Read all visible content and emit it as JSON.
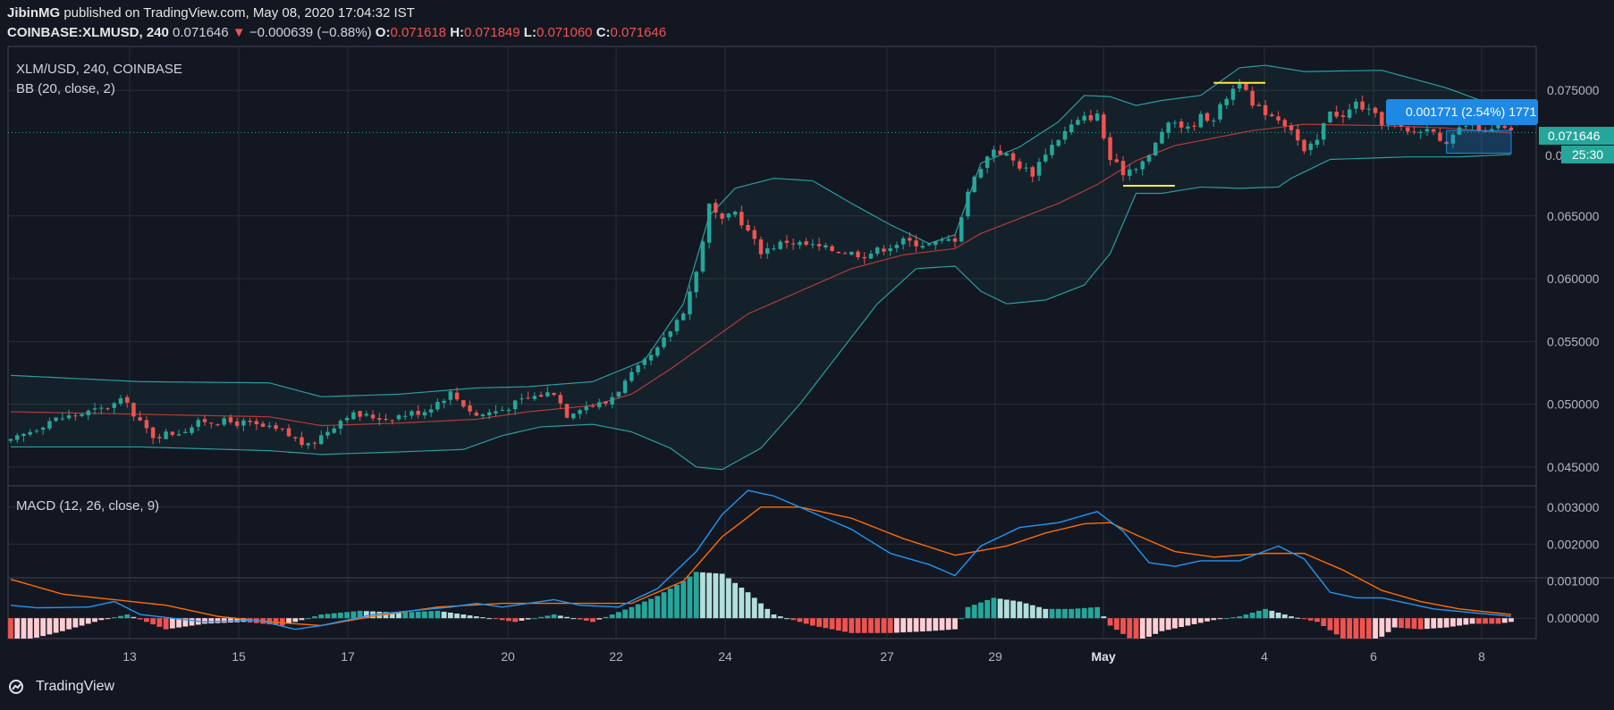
{
  "header": {
    "author": "JibinMG",
    "published_text": "published on TradingView.com, May 08, 2020 17:04:32 IST",
    "symbol": "COINBASE:XLMUSD, 240",
    "last": "0.071646",
    "change_arrow": "▼",
    "change": "−0.000639 (−0.88%)",
    "o_label": "O:",
    "o": "0.071618",
    "h_label": "H:",
    "h": "0.071849",
    "l_label": "L:",
    "l": "0.071060",
    "c_label": "C:",
    "c": "0.071646"
  },
  "pane": {
    "title": "XLM/USD, 240, COINBASE",
    "indicator": "BB (20, close, 2)",
    "macd_title": "MACD (12, 26, close, 9)"
  },
  "price_labels": {
    "last": "0.071646",
    "countdown": "25:30",
    "partial": "0.0",
    "measure": "0.001771 (2.54%) 1771"
  },
  "footer": {
    "brand": "TradingView"
  },
  "colors": {
    "background": "#131722",
    "up": "#26a69a",
    "down": "#ef5350",
    "bb_band": "#2a9d9d",
    "bb_basis": "#b33a3a",
    "macd": "#2196f3",
    "signal": "#ff6d00",
    "hist_up_strong": "#26a69a",
    "hist_up_weak": "#b2dfdb",
    "hist_down_strong": "#ef5350",
    "hist_down_weak": "#ffcdd2",
    "highlight": "#ffeb3b",
    "measure": "#1e88e5"
  },
  "chart_data": [
    {
      "type": "candlestick",
      "title": "XLM/USD, 240, COINBASE",
      "ylim": [
        0.0435,
        0.0785
      ],
      "y_ticks": [
        "0.075000",
        "0.065000",
        "0.060000",
        "0.055000",
        "0.050000",
        "0.045000"
      ],
      "x_ticks": [
        "13",
        "15",
        "17",
        "20",
        "22",
        "24",
        "27",
        "29",
        "May",
        "4",
        "6",
        "8"
      ],
      "anchors": [
        [
          0,
          0.047
        ],
        [
          6,
          0.0487
        ],
        [
          14,
          0.0496
        ],
        [
          18,
          0.0504
        ],
        [
          19,
          0.049
        ],
        [
          22,
          0.0475
        ],
        [
          26,
          0.0478
        ],
        [
          30,
          0.0487
        ],
        [
          36,
          0.0485
        ],
        [
          42,
          0.0478
        ],
        [
          46,
          0.0466
        ],
        [
          48,
          0.0475
        ],
        [
          52,
          0.0492
        ],
        [
          58,
          0.0489
        ],
        [
          64,
          0.0495
        ],
        [
          68,
          0.0509
        ],
        [
          72,
          0.0491
        ],
        [
          76,
          0.0496
        ],
        [
          80,
          0.0505
        ],
        [
          84,
          0.051
        ],
        [
          86,
          0.0492
        ],
        [
          88,
          0.0498
        ],
        [
          92,
          0.0501
        ],
        [
          96,
          0.0523
        ],
        [
          100,
          0.0543
        ],
        [
          104,
          0.0575
        ],
        [
          106,
          0.0605
        ],
        [
          108,
          0.0658
        ],
        [
          110,
          0.0645
        ],
        [
          112,
          0.0653
        ],
        [
          116,
          0.0622
        ],
        [
          120,
          0.063
        ],
        [
          126,
          0.0624
        ],
        [
          132,
          0.0619
        ],
        [
          138,
          0.063
        ],
        [
          142,
          0.0627
        ],
        [
          146,
          0.0632
        ],
        [
          148,
          0.067
        ],
        [
          150,
          0.069
        ],
        [
          152,
          0.0704
        ],
        [
          154,
          0.0698
        ],
        [
          156,
          0.069
        ],
        [
          158,
          0.0684
        ],
        [
          160,
          0.0701
        ],
        [
          162,
          0.0712
        ],
        [
          164,
          0.0722
        ],
        [
          166,
          0.0728
        ],
        [
          168,
          0.073
        ],
        [
          170,
          0.0695
        ],
        [
          172,
          0.0685
        ],
        [
          174,
          0.069
        ],
        [
          176,
          0.0697
        ],
        [
          178,
          0.0718
        ],
        [
          180,
          0.0725
        ],
        [
          182,
          0.0719
        ],
        [
          184,
          0.0729
        ],
        [
          186,
          0.0728
        ],
        [
          188,
          0.0745
        ],
        [
          190,
          0.0758
        ],
        [
          192,
          0.0737
        ],
        [
          194,
          0.0733
        ],
        [
          196,
          0.0728
        ],
        [
          198,
          0.072
        ],
        [
          200,
          0.07
        ],
        [
          202,
          0.071
        ],
        [
          204,
          0.0735
        ],
        [
          206,
          0.0728
        ],
        [
          208,
          0.074
        ],
        [
          210,
          0.0733
        ],
        [
          212,
          0.0725
        ],
        [
          214,
          0.0722
        ],
        [
          216,
          0.0716
        ],
        [
          220,
          0.072
        ],
        [
          222,
          0.0705
        ],
        [
          224,
          0.0719
        ],
        [
          226,
          0.0725
        ],
        [
          228,
          0.0715
        ],
        [
          230,
          0.0721
        ],
        [
          232,
          0.0716
        ]
      ],
      "bb_upper": [
        [
          0,
          0.0523
        ],
        [
          20,
          0.0518
        ],
        [
          40,
          0.0517
        ],
        [
          48,
          0.0506
        ],
        [
          60,
          0.0508
        ],
        [
          72,
          0.0513
        ],
        [
          80,
          0.0514
        ],
        [
          90,
          0.0518
        ],
        [
          98,
          0.0535
        ],
        [
          104,
          0.058
        ],
        [
          108,
          0.065
        ],
        [
          112,
          0.0672
        ],
        [
          118,
          0.068
        ],
        [
          124,
          0.0678
        ],
        [
          130,
          0.066
        ],
        [
          136,
          0.0643
        ],
        [
          142,
          0.0628
        ],
        [
          146,
          0.0635
        ],
        [
          150,
          0.0692
        ],
        [
          156,
          0.0705
        ],
        [
          162,
          0.0725
        ],
        [
          166,
          0.0746
        ],
        [
          170,
          0.0745
        ],
        [
          174,
          0.0738
        ],
        [
          178,
          0.0742
        ],
        [
          184,
          0.0746
        ],
        [
          190,
          0.0768
        ],
        [
          194,
          0.077
        ],
        [
          200,
          0.0765
        ],
        [
          212,
          0.0766
        ],
        [
          222,
          0.0752
        ],
        [
          232,
          0.0733
        ]
      ],
      "bb_lower": [
        [
          0,
          0.0466
        ],
        [
          20,
          0.0466
        ],
        [
          40,
          0.0463
        ],
        [
          48,
          0.046
        ],
        [
          60,
          0.0462
        ],
        [
          70,
          0.0464
        ],
        [
          76,
          0.0475
        ],
        [
          82,
          0.0482
        ],
        [
          90,
          0.0484
        ],
        [
          96,
          0.0478
        ],
        [
          102,
          0.0465
        ],
        [
          106,
          0.045
        ],
        [
          110,
          0.0448
        ],
        [
          116,
          0.0465
        ],
        [
          122,
          0.05
        ],
        [
          128,
          0.054
        ],
        [
          134,
          0.058
        ],
        [
          140,
          0.0608
        ],
        [
          146,
          0.061
        ],
        [
          150,
          0.059
        ],
        [
          154,
          0.058
        ],
        [
          160,
          0.0583
        ],
        [
          166,
          0.0595
        ],
        [
          170,
          0.062
        ],
        [
          174,
          0.0668
        ],
        [
          178,
          0.0668
        ],
        [
          184,
          0.0673
        ],
        [
          190,
          0.0672
        ],
        [
          196,
          0.0673
        ],
        [
          198,
          0.068
        ],
        [
          204,
          0.0695
        ],
        [
          216,
          0.0697
        ],
        [
          224,
          0.0697
        ],
        [
          232,
          0.0699
        ]
      ],
      "bb_basis": [
        [
          0,
          0.0494
        ],
        [
          20,
          0.0492
        ],
        [
          40,
          0.049
        ],
        [
          48,
          0.0483
        ],
        [
          60,
          0.0485
        ],
        [
          72,
          0.0488
        ],
        [
          80,
          0.0494
        ],
        [
          90,
          0.0499
        ],
        [
          96,
          0.0508
        ],
        [
          102,
          0.0528
        ],
        [
          108,
          0.055
        ],
        [
          114,
          0.0572
        ],
        [
          122,
          0.059
        ],
        [
          130,
          0.0608
        ],
        [
          138,
          0.0619
        ],
        [
          146,
          0.0624
        ],
        [
          150,
          0.0636
        ],
        [
          156,
          0.0648
        ],
        [
          162,
          0.066
        ],
        [
          168,
          0.0675
        ],
        [
          174,
          0.0694
        ],
        [
          180,
          0.0706
        ],
        [
          186,
          0.0712
        ],
        [
          192,
          0.0718
        ],
        [
          200,
          0.0723
        ],
        [
          212,
          0.0722
        ],
        [
          222,
          0.072
        ],
        [
          232,
          0.0716
        ]
      ],
      "annotations": [
        {
          "type": "resistance",
          "from_bar": 186,
          "to_bar": 194,
          "price": 0.0756
        },
        {
          "type": "support",
          "from_bar": 172,
          "to_bar": 180,
          "price": 0.0674
        },
        {
          "type": "measure",
          "from_bar": 222,
          "to_bar": 232,
          "price_from": 0.07,
          "price_to": 0.0718
        }
      ]
    },
    {
      "type": "line",
      "title": "MACD (12, 26, close, 9)",
      "ylim": [
        -0.00055,
        0.00355
      ],
      "y_ticks": [
        "0.003000",
        "0.002000",
        "0.001000",
        "0.000000"
      ],
      "macd": [
        [
          0,
          0.00035
        ],
        [
          4,
          0.00028
        ],
        [
          12,
          0.0003
        ],
        [
          16,
          0.00045
        ],
        [
          20,
          0.0001
        ],
        [
          30,
          -0.0001
        ],
        [
          38,
          -5e-05
        ],
        [
          44,
          -0.0003
        ],
        [
          48,
          -0.0002
        ],
        [
          56,
          0.0001
        ],
        [
          62,
          0.0002
        ],
        [
          68,
          0.0003
        ],
        [
          72,
          0.0004
        ],
        [
          76,
          0.0003
        ],
        [
          80,
          0.0004
        ],
        [
          84,
          0.0005
        ],
        [
          88,
          0.00035
        ],
        [
          94,
          0.0003
        ],
        [
          100,
          0.0008
        ],
        [
          106,
          0.0018
        ],
        [
          110,
          0.0028
        ],
        [
          114,
          0.00345
        ],
        [
          118,
          0.0033
        ],
        [
          124,
          0.00285
        ],
        [
          130,
          0.0024
        ],
        [
          136,
          0.00175
        ],
        [
          142,
          0.00145
        ],
        [
          146,
          0.00115
        ],
        [
          150,
          0.00195
        ],
        [
          156,
          0.00245
        ],
        [
          162,
          0.00258
        ],
        [
          166,
          0.00278
        ],
        [
          168,
          0.00288
        ],
        [
          172,
          0.00235
        ],
        [
          176,
          0.0015
        ],
        [
          180,
          0.0014
        ],
        [
          184,
          0.00155
        ],
        [
          190,
          0.00155
        ],
        [
          196,
          0.00195
        ],
        [
          200,
          0.0016
        ],
        [
          204,
          0.0007
        ],
        [
          208,
          0.00055
        ],
        [
          212,
          0.00055
        ],
        [
          216,
          0.0004
        ],
        [
          220,
          0.00025
        ],
        [
          226,
          0.00015
        ],
        [
          232,
          5e-05
        ]
      ],
      "signal": [
        [
          0,
          0.00105
        ],
        [
          8,
          0.00065
        ],
        [
          16,
          0.0005
        ],
        [
          24,
          0.00035
        ],
        [
          32,
          5e-05
        ],
        [
          40,
          -0.0001
        ],
        [
          48,
          -0.0002
        ],
        [
          56,
          5e-05
        ],
        [
          66,
          0.0003
        ],
        [
          76,
          0.0004
        ],
        [
          86,
          0.0004
        ],
        [
          96,
          0.0004
        ],
        [
          104,
          0.001
        ],
        [
          110,
          0.0022
        ],
        [
          116,
          0.003
        ],
        [
          122,
          0.003
        ],
        [
          130,
          0.0027
        ],
        [
          138,
          0.00215
        ],
        [
          146,
          0.0017
        ],
        [
          154,
          0.00195
        ],
        [
          160,
          0.0023
        ],
        [
          166,
          0.00255
        ],
        [
          170,
          0.00258
        ],
        [
          174,
          0.00225
        ],
        [
          180,
          0.0018
        ],
        [
          186,
          0.00165
        ],
        [
          194,
          0.00175
        ],
        [
          200,
          0.00175
        ],
        [
          206,
          0.0013
        ],
        [
          212,
          0.00075
        ],
        [
          218,
          0.00045
        ],
        [
          224,
          0.00025
        ],
        [
          232,
          0.0001
        ]
      ],
      "histogram": [
        [
          0,
          -0.0007
        ],
        [
          8,
          -0.00035
        ],
        [
          14,
          -5e-05
        ],
        [
          18,
          0.0001
        ],
        [
          24,
          -0.0003
        ],
        [
          30,
          -0.00015
        ],
        [
          36,
          -0.0001
        ],
        [
          42,
          -0.0002
        ],
        [
          48,
          0.0001
        ],
        [
          54,
          0.0002
        ],
        [
          60,
          0.00015
        ],
        [
          66,
          0.0002
        ],
        [
          72,
          5e-05
        ],
        [
          78,
          -0.0001
        ],
        [
          84,
          0.0001
        ],
        [
          90,
          -0.0001
        ],
        [
          96,
          0.0003
        ],
        [
          100,
          0.0006
        ],
        [
          104,
          0.001
        ],
        [
          106,
          0.00125
        ],
        [
          110,
          0.0012
        ],
        [
          114,
          0.0007
        ],
        [
          118,
          0.0001
        ],
        [
          124,
          -0.0002
        ],
        [
          130,
          -0.0004
        ],
        [
          136,
          -0.0004
        ],
        [
          142,
          -0.00035
        ],
        [
          146,
          -0.0003
        ],
        [
          148,
          0.0003
        ],
        [
          152,
          0.00055
        ],
        [
          156,
          0.00045
        ],
        [
          160,
          0.00025
        ],
        [
          164,
          0.00025
        ],
        [
          168,
          0.0003
        ],
        [
          170,
          -0.0002
        ],
        [
          174,
          -0.00065
        ],
        [
          178,
          -0.00035
        ],
        [
          182,
          -0.0002
        ],
        [
          186,
          -5e-05
        ],
        [
          190,
          5e-05
        ],
        [
          194,
          0.00025
        ],
        [
          198,
          5e-05
        ],
        [
          202,
          -0.0001
        ],
        [
          206,
          -0.00055
        ],
        [
          210,
          -0.00075
        ],
        [
          214,
          -0.00025
        ],
        [
          218,
          -0.0003
        ],
        [
          222,
          -0.00025
        ],
        [
          226,
          -0.00015
        ],
        [
          230,
          -0.00015
        ],
        [
          232,
          -0.0001
        ]
      ]
    }
  ]
}
